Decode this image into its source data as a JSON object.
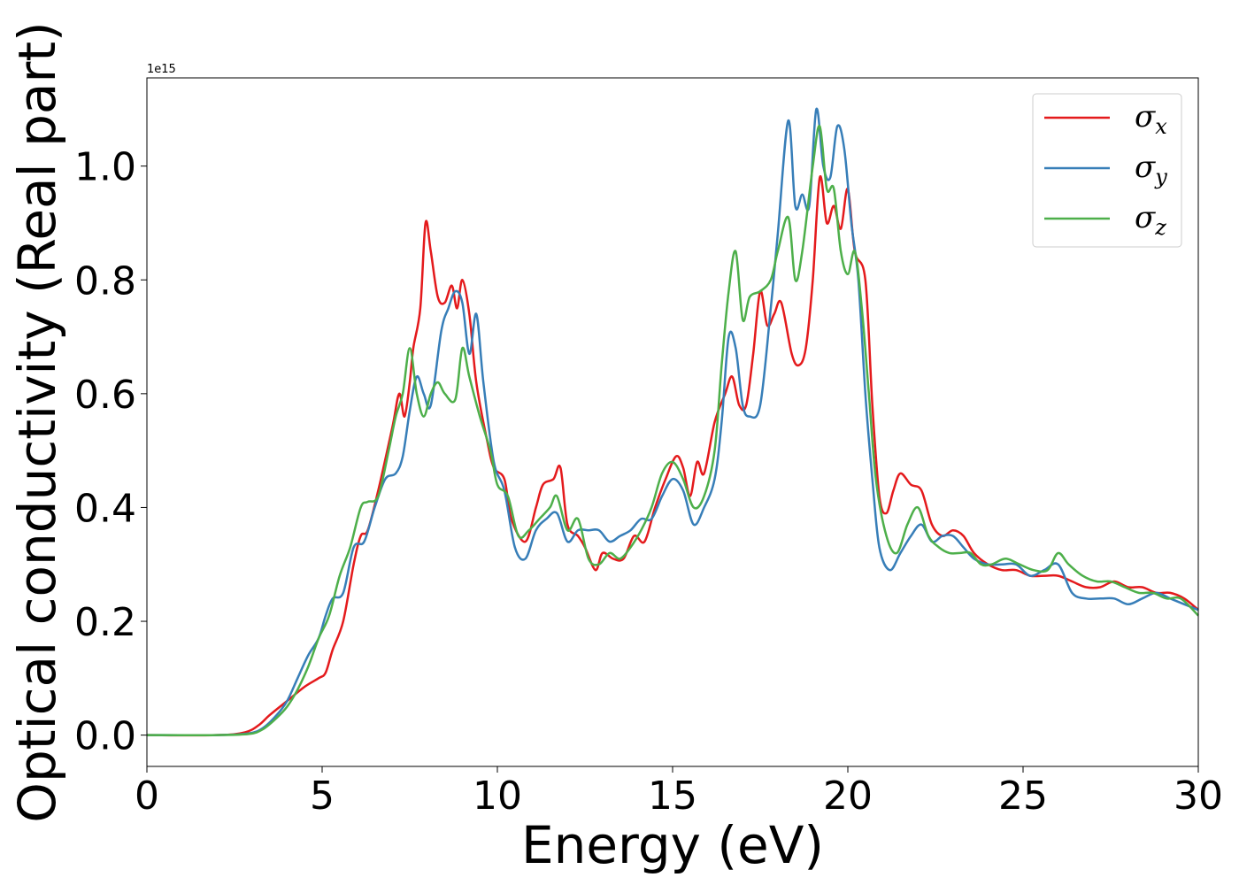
{
  "chart_data": {
    "type": "line",
    "title": "",
    "xlabel": "Energy (eV)",
    "ylabel": "Optical conductivity (Real part)",
    "y_offset_label": "1e15",
    "xlim": [
      0,
      30
    ],
    "ylim": [
      -0.055,
      1.155
    ],
    "x_ticks": [
      0,
      5,
      10,
      15,
      20,
      25,
      30
    ],
    "x_tick_labels": [
      "0",
      "5",
      "10",
      "15",
      "20",
      "25",
      "30"
    ],
    "y_ticks": [
      0.0,
      0.2,
      0.4,
      0.6,
      0.8,
      1.0
    ],
    "y_tick_labels": [
      "0.0",
      "0.2",
      "0.4",
      "0.6",
      "0.8",
      "1.0"
    ],
    "grid": false,
    "legend_position": "top-right",
    "series": [
      {
        "name": "σx",
        "symbol": "σ",
        "subscript": "x",
        "color": "#e41a1c",
        "points": [
          [
            0,
            0
          ],
          [
            2,
            0
          ],
          [
            2.8,
            0.005
          ],
          [
            3.2,
            0.018
          ],
          [
            3.5,
            0.035
          ],
          [
            4.0,
            0.06
          ],
          [
            4.5,
            0.085
          ],
          [
            4.9,
            0.1
          ],
          [
            5.1,
            0.11
          ],
          [
            5.3,
            0.15
          ],
          [
            5.6,
            0.2
          ],
          [
            5.9,
            0.3
          ],
          [
            6.1,
            0.35
          ],
          [
            6.3,
            0.36
          ],
          [
            6.6,
            0.43
          ],
          [
            7.0,
            0.54
          ],
          [
            7.2,
            0.6
          ],
          [
            7.35,
            0.56
          ],
          [
            7.5,
            0.62
          ],
          [
            7.6,
            0.68
          ],
          [
            7.8,
            0.75
          ],
          [
            7.95,
            0.9
          ],
          [
            8.1,
            0.85
          ],
          [
            8.3,
            0.77
          ],
          [
            8.5,
            0.76
          ],
          [
            8.7,
            0.79
          ],
          [
            8.85,
            0.75
          ],
          [
            9.0,
            0.8
          ],
          [
            9.2,
            0.74
          ],
          [
            9.4,
            0.62
          ],
          [
            9.7,
            0.52
          ],
          [
            9.9,
            0.47
          ],
          [
            10.2,
            0.45
          ],
          [
            10.4,
            0.38
          ],
          [
            10.8,
            0.34
          ],
          [
            11.1,
            0.4
          ],
          [
            11.3,
            0.44
          ],
          [
            11.6,
            0.45
          ],
          [
            11.8,
            0.47
          ],
          [
            12.0,
            0.37
          ],
          [
            12.3,
            0.35
          ],
          [
            12.5,
            0.33
          ],
          [
            12.8,
            0.29
          ],
          [
            13.0,
            0.32
          ],
          [
            13.3,
            0.31
          ],
          [
            13.6,
            0.31
          ],
          [
            13.9,
            0.35
          ],
          [
            14.2,
            0.34
          ],
          [
            14.5,
            0.4
          ],
          [
            14.8,
            0.45
          ],
          [
            15.1,
            0.49
          ],
          [
            15.3,
            0.47
          ],
          [
            15.5,
            0.42
          ],
          [
            15.7,
            0.48
          ],
          [
            15.9,
            0.46
          ],
          [
            16.2,
            0.55
          ],
          [
            16.5,
            0.6
          ],
          [
            16.7,
            0.63
          ],
          [
            16.9,
            0.58
          ],
          [
            17.1,
            0.58
          ],
          [
            17.3,
            0.67
          ],
          [
            17.5,
            0.78
          ],
          [
            17.7,
            0.72
          ],
          [
            17.9,
            0.74
          ],
          [
            18.1,
            0.76
          ],
          [
            18.4,
            0.67
          ],
          [
            18.6,
            0.65
          ],
          [
            18.8,
            0.68
          ],
          [
            19.0,
            0.8
          ],
          [
            19.2,
            0.98
          ],
          [
            19.4,
            0.9
          ],
          [
            19.6,
            0.93
          ],
          [
            19.8,
            0.89
          ],
          [
            20.0,
            0.96
          ],
          [
            20.2,
            0.85
          ],
          [
            20.5,
            0.8
          ],
          [
            20.7,
            0.58
          ],
          [
            20.9,
            0.42
          ],
          [
            21.1,
            0.39
          ],
          [
            21.3,
            0.43
          ],
          [
            21.5,
            0.46
          ],
          [
            21.8,
            0.44
          ],
          [
            22.1,
            0.43
          ],
          [
            22.4,
            0.37
          ],
          [
            22.7,
            0.35
          ],
          [
            23.0,
            0.36
          ],
          [
            23.3,
            0.35
          ],
          [
            23.6,
            0.32
          ],
          [
            24.0,
            0.3
          ],
          [
            24.4,
            0.29
          ],
          [
            24.8,
            0.29
          ],
          [
            25.2,
            0.28
          ],
          [
            25.6,
            0.28
          ],
          [
            26.0,
            0.28
          ],
          [
            26.4,
            0.27
          ],
          [
            26.8,
            0.26
          ],
          [
            27.2,
            0.26
          ],
          [
            27.6,
            0.27
          ],
          [
            28.0,
            0.26
          ],
          [
            28.4,
            0.26
          ],
          [
            28.8,
            0.25
          ],
          [
            29.2,
            0.25
          ],
          [
            29.6,
            0.24
          ],
          [
            30.0,
            0.22
          ]
        ]
      },
      {
        "name": "σy",
        "symbol": "σ",
        "subscript": "y",
        "color": "#377eb8",
        "points": [
          [
            0,
            0
          ],
          [
            2,
            0
          ],
          [
            2.9,
            0.003
          ],
          [
            3.3,
            0.012
          ],
          [
            3.7,
            0.035
          ],
          [
            4.0,
            0.06
          ],
          [
            4.3,
            0.1
          ],
          [
            4.6,
            0.14
          ],
          [
            4.9,
            0.17
          ],
          [
            5.1,
            0.21
          ],
          [
            5.3,
            0.24
          ],
          [
            5.6,
            0.25
          ],
          [
            5.9,
            0.33
          ],
          [
            6.2,
            0.34
          ],
          [
            6.5,
            0.4
          ],
          [
            6.8,
            0.45
          ],
          [
            7.1,
            0.46
          ],
          [
            7.3,
            0.49
          ],
          [
            7.5,
            0.57
          ],
          [
            7.7,
            0.63
          ],
          [
            7.9,
            0.6
          ],
          [
            8.1,
            0.58
          ],
          [
            8.4,
            0.71
          ],
          [
            8.6,
            0.75
          ],
          [
            8.8,
            0.78
          ],
          [
            9.0,
            0.76
          ],
          [
            9.2,
            0.67
          ],
          [
            9.4,
            0.74
          ],
          [
            9.6,
            0.62
          ],
          [
            9.9,
            0.48
          ],
          [
            10.2,
            0.43
          ],
          [
            10.5,
            0.33
          ],
          [
            10.8,
            0.31
          ],
          [
            11.1,
            0.36
          ],
          [
            11.4,
            0.38
          ],
          [
            11.7,
            0.39
          ],
          [
            12.0,
            0.34
          ],
          [
            12.3,
            0.36
          ],
          [
            12.6,
            0.36
          ],
          [
            12.9,
            0.36
          ],
          [
            13.2,
            0.34
          ],
          [
            13.5,
            0.35
          ],
          [
            13.8,
            0.36
          ],
          [
            14.1,
            0.38
          ],
          [
            14.4,
            0.38
          ],
          [
            14.7,
            0.42
          ],
          [
            15.0,
            0.45
          ],
          [
            15.3,
            0.43
          ],
          [
            15.6,
            0.37
          ],
          [
            15.9,
            0.4
          ],
          [
            16.2,
            0.45
          ],
          [
            16.4,
            0.55
          ],
          [
            16.6,
            0.7
          ],
          [
            16.8,
            0.68
          ],
          [
            17.0,
            0.58
          ],
          [
            17.2,
            0.56
          ],
          [
            17.5,
            0.58
          ],
          [
            17.8,
            0.75
          ],
          [
            18.0,
            0.88
          ],
          [
            18.3,
            1.08
          ],
          [
            18.5,
            0.93
          ],
          [
            18.7,
            0.95
          ],
          [
            18.9,
            0.93
          ],
          [
            19.1,
            1.1
          ],
          [
            19.3,
            1.0
          ],
          [
            19.5,
            0.98
          ],
          [
            19.7,
            1.07
          ],
          [
            19.9,
            1.03
          ],
          [
            20.1,
            0.9
          ],
          [
            20.3,
            0.8
          ],
          [
            20.5,
            0.6
          ],
          [
            20.7,
            0.45
          ],
          [
            20.9,
            0.33
          ],
          [
            21.2,
            0.29
          ],
          [
            21.5,
            0.32
          ],
          [
            21.8,
            0.35
          ],
          [
            22.1,
            0.37
          ],
          [
            22.4,
            0.34
          ],
          [
            22.7,
            0.35
          ],
          [
            23.0,
            0.35
          ],
          [
            23.3,
            0.33
          ],
          [
            23.6,
            0.31
          ],
          [
            24.0,
            0.3
          ],
          [
            24.4,
            0.3
          ],
          [
            24.8,
            0.3
          ],
          [
            25.2,
            0.28
          ],
          [
            25.6,
            0.29
          ],
          [
            26.0,
            0.3
          ],
          [
            26.4,
            0.25
          ],
          [
            26.8,
            0.24
          ],
          [
            27.2,
            0.24
          ],
          [
            27.6,
            0.24
          ],
          [
            28.0,
            0.23
          ],
          [
            28.4,
            0.24
          ],
          [
            28.8,
            0.25
          ],
          [
            29.2,
            0.24
          ],
          [
            29.6,
            0.23
          ],
          [
            30.0,
            0.22
          ]
        ]
      },
      {
        "name": "σz",
        "symbol": "σ",
        "subscript": "z",
        "color": "#4daf4a",
        "points": [
          [
            0,
            0
          ],
          [
            2,
            0
          ],
          [
            2.9,
            0.002
          ],
          [
            3.3,
            0.01
          ],
          [
            3.7,
            0.03
          ],
          [
            4.0,
            0.05
          ],
          [
            4.3,
            0.08
          ],
          [
            4.6,
            0.12
          ],
          [
            4.9,
            0.17
          ],
          [
            5.2,
            0.21
          ],
          [
            5.5,
            0.28
          ],
          [
            5.8,
            0.33
          ],
          [
            6.1,
            0.4
          ],
          [
            6.3,
            0.41
          ],
          [
            6.6,
            0.42
          ],
          [
            6.9,
            0.5
          ],
          [
            7.1,
            0.56
          ],
          [
            7.3,
            0.6
          ],
          [
            7.5,
            0.68
          ],
          [
            7.7,
            0.6
          ],
          [
            7.9,
            0.56
          ],
          [
            8.1,
            0.6
          ],
          [
            8.3,
            0.62
          ],
          [
            8.5,
            0.6
          ],
          [
            8.8,
            0.59
          ],
          [
            9.0,
            0.68
          ],
          [
            9.2,
            0.63
          ],
          [
            9.5,
            0.56
          ],
          [
            9.8,
            0.5
          ],
          [
            10.0,
            0.44
          ],
          [
            10.3,
            0.42
          ],
          [
            10.6,
            0.35
          ],
          [
            10.9,
            0.36
          ],
          [
            11.2,
            0.38
          ],
          [
            11.5,
            0.4
          ],
          [
            11.7,
            0.42
          ],
          [
            12.0,
            0.36
          ],
          [
            12.3,
            0.38
          ],
          [
            12.6,
            0.31
          ],
          [
            12.9,
            0.3
          ],
          [
            13.2,
            0.32
          ],
          [
            13.5,
            0.31
          ],
          [
            13.8,
            0.33
          ],
          [
            14.1,
            0.36
          ],
          [
            14.4,
            0.4
          ],
          [
            14.7,
            0.46
          ],
          [
            15.0,
            0.48
          ],
          [
            15.3,
            0.45
          ],
          [
            15.6,
            0.4
          ],
          [
            15.9,
            0.42
          ],
          [
            16.2,
            0.5
          ],
          [
            16.4,
            0.65
          ],
          [
            16.6,
            0.78
          ],
          [
            16.8,
            0.85
          ],
          [
            17.0,
            0.73
          ],
          [
            17.2,
            0.77
          ],
          [
            17.5,
            0.78
          ],
          [
            17.8,
            0.8
          ],
          [
            18.0,
            0.85
          ],
          [
            18.3,
            0.91
          ],
          [
            18.5,
            0.8
          ],
          [
            18.7,
            0.85
          ],
          [
            19.0,
            1.0
          ],
          [
            19.2,
            1.07
          ],
          [
            19.4,
            0.96
          ],
          [
            19.6,
            0.96
          ],
          [
            19.8,
            0.85
          ],
          [
            20.0,
            0.81
          ],
          [
            20.2,
            0.85
          ],
          [
            20.4,
            0.75
          ],
          [
            20.6,
            0.6
          ],
          [
            20.8,
            0.45
          ],
          [
            21.1,
            0.35
          ],
          [
            21.4,
            0.32
          ],
          [
            21.7,
            0.37
          ],
          [
            22.0,
            0.4
          ],
          [
            22.3,
            0.35
          ],
          [
            22.6,
            0.33
          ],
          [
            22.9,
            0.32
          ],
          [
            23.2,
            0.32
          ],
          [
            23.5,
            0.32
          ],
          [
            23.8,
            0.3
          ],
          [
            24.1,
            0.3
          ],
          [
            24.5,
            0.31
          ],
          [
            24.9,
            0.3
          ],
          [
            25.3,
            0.29
          ],
          [
            25.7,
            0.29
          ],
          [
            26.0,
            0.32
          ],
          [
            26.3,
            0.3
          ],
          [
            26.7,
            0.28
          ],
          [
            27.1,
            0.27
          ],
          [
            27.5,
            0.27
          ],
          [
            27.9,
            0.26
          ],
          [
            28.3,
            0.25
          ],
          [
            28.7,
            0.25
          ],
          [
            29.1,
            0.24
          ],
          [
            29.5,
            0.24
          ],
          [
            30.0,
            0.21
          ]
        ]
      }
    ]
  }
}
